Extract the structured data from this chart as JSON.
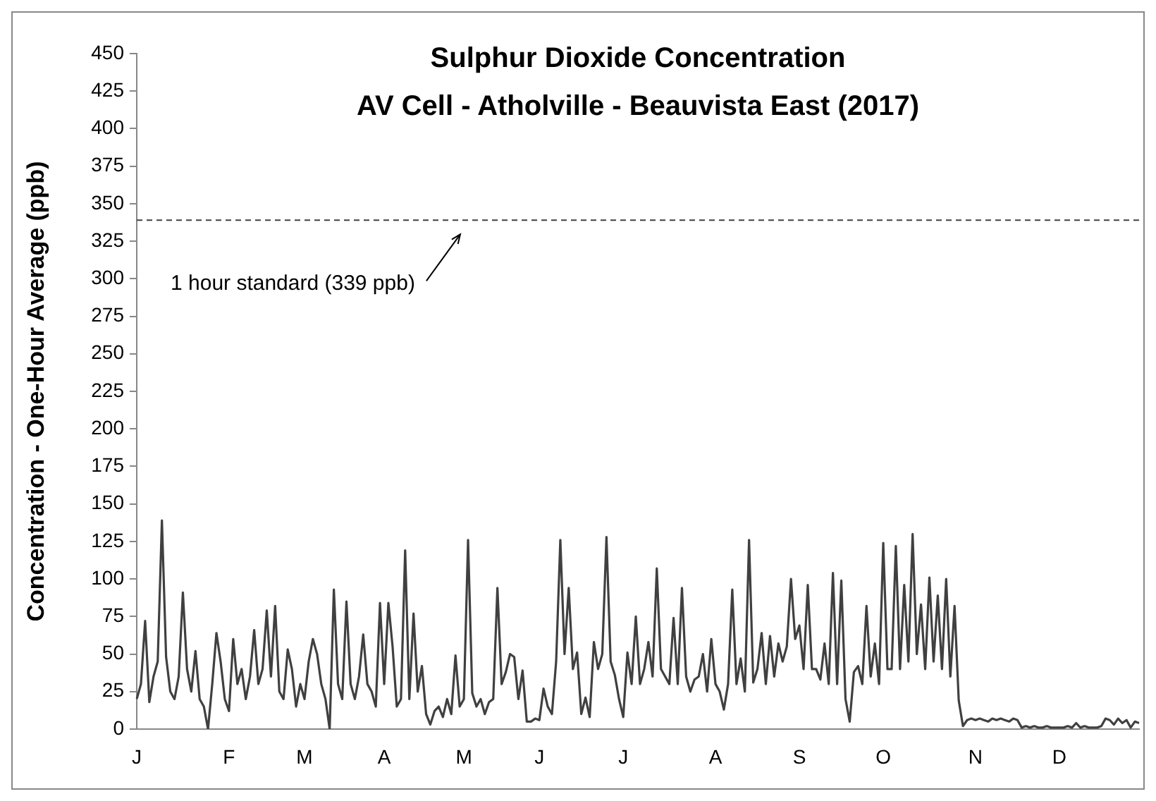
{
  "chart_data": {
    "type": "line",
    "title": "Sulphur Dioxide Concentration",
    "subtitle": "AV Cell - Atholville - Beauvista East (2017)",
    "ylabel": "Concentration - One-Hour Average (ppb)",
    "categories": [
      "J",
      null,
      null,
      null,
      null,
      null,
      null,
      null,
      null,
      null,
      null,
      null,
      null,
      null,
      null,
      null,
      null,
      null,
      null,
      null,
      null,
      null,
      "F",
      null,
      null,
      null,
      null,
      null,
      null,
      null,
      null,
      null,
      null,
      null,
      null,
      null,
      null,
      null,
      null,
      null,
      "M",
      null,
      null,
      null,
      null,
      null,
      null,
      null,
      null,
      null,
      null,
      null,
      null,
      null,
      null,
      null,
      null,
      null,
      null,
      "A",
      null,
      null,
      null,
      null,
      null,
      null,
      null,
      null,
      null,
      null,
      null,
      null,
      null,
      null,
      null,
      null,
      null,
      null,
      "M",
      null,
      null,
      null,
      null,
      null,
      null,
      null,
      null,
      null,
      null,
      null,
      null,
      null,
      null,
      null,
      null,
      null,
      "J",
      null,
      null,
      null,
      null,
      null,
      null,
      null,
      null,
      null,
      null,
      null,
      null,
      null,
      null,
      null,
      null,
      null,
      null,
      null,
      "J",
      null,
      null,
      null,
      null,
      null,
      null,
      null,
      null,
      null,
      null,
      null,
      null,
      null,
      null,
      null,
      null,
      null,
      null,
      null,
      null,
      null,
      "A",
      null,
      null,
      null,
      null,
      null,
      null,
      null,
      null,
      null,
      null,
      null,
      null,
      null,
      null,
      null,
      null,
      null,
      null,
      null,
      "S",
      null,
      null,
      null,
      null,
      null,
      null,
      null,
      null,
      null,
      null,
      null,
      null,
      null,
      null,
      null,
      null,
      null,
      null,
      null,
      "O",
      null,
      null,
      null,
      null,
      null,
      null,
      null,
      null,
      null,
      null,
      null,
      null,
      null,
      null,
      null,
      null,
      null,
      null,
      null,
      null,
      null,
      "N",
      null,
      null,
      null,
      null,
      null,
      null,
      null,
      null,
      null,
      null,
      null,
      null,
      null,
      null,
      null,
      null,
      null,
      null,
      null,
      "D",
      null,
      null,
      null,
      null,
      null,
      null,
      null,
      null,
      null,
      null,
      null,
      null,
      null,
      null,
      null,
      null,
      null,
      null,
      null
    ],
    "series": [
      {
        "color": "#404040",
        "values": [
          20,
          30,
          72,
          18,
          35,
          45,
          139,
          48,
          25,
          20,
          35,
          91,
          40,
          25,
          52,
          20,
          15,
          0,
          30,
          64,
          45,
          20,
          12,
          60,
          30,
          40,
          20,
          35,
          66,
          30,
          40,
          79,
          35,
          82,
          25,
          20,
          53,
          40,
          15,
          30,
          20,
          45,
          60,
          50,
          30,
          20,
          0,
          93,
          30,
          20,
          85,
          30,
          20,
          35,
          63,
          30,
          25,
          15,
          84,
          30,
          84,
          55,
          15,
          20,
          119,
          20,
          77,
          25,
          42,
          10,
          3,
          12,
          15,
          8,
          20,
          10,
          49,
          15,
          20,
          126,
          24,
          15,
          20,
          10,
          18,
          20,
          94,
          30,
          38,
          50,
          48,
          20,
          39,
          5,
          5,
          7,
          6,
          27,
          15,
          10,
          45,
          126,
          50,
          94,
          40,
          51,
          10,
          21,
          8,
          58,
          40,
          50,
          128,
          45,
          36,
          20,
          8,
          51,
          30,
          75,
          30,
          40,
          58,
          35,
          107,
          40,
          35,
          30,
          74,
          30,
          94,
          35,
          25,
          33,
          35,
          50,
          25,
          60,
          30,
          25,
          13,
          30,
          93,
          30,
          47,
          25,
          126,
          31,
          40,
          64,
          30,
          62,
          35,
          57,
          45,
          55,
          100,
          60,
          69,
          40,
          96,
          40,
          40,
          33,
          57,
          30,
          104,
          30,
          99,
          20,
          5,
          38,
          42,
          30,
          82,
          35,
          57,
          30,
          124,
          40,
          40,
          122,
          40,
          96,
          45,
          130,
          50,
          83,
          40,
          101,
          45,
          89,
          40,
          100,
          35,
          82,
          19,
          2,
          6,
          7,
          6,
          7,
          6,
          5,
          7,
          6,
          7,
          6,
          5,
          7,
          6,
          1,
          2,
          1,
          2,
          1,
          1,
          2,
          1,
          1,
          1,
          1,
          2,
          1,
          4,
          1,
          2,
          1,
          1,
          1,
          2,
          7,
          6,
          3,
          7,
          4,
          6,
          1,
          5,
          4
        ]
      }
    ],
    "ylim": [
      0,
      450
    ],
    "yticks": [
      0,
      25,
      50,
      75,
      100,
      125,
      150,
      175,
      200,
      225,
      250,
      275,
      300,
      325,
      350,
      375,
      400,
      425,
      450
    ],
    "ref_lines": [
      {
        "axis": "y",
        "value": 339,
        "label": "1 hour standard (339 ppb)",
        "line_style": "dashed",
        "color": "#404040"
      }
    ],
    "grid": false,
    "legend": false,
    "marker": "none",
    "line_style": "solid"
  }
}
